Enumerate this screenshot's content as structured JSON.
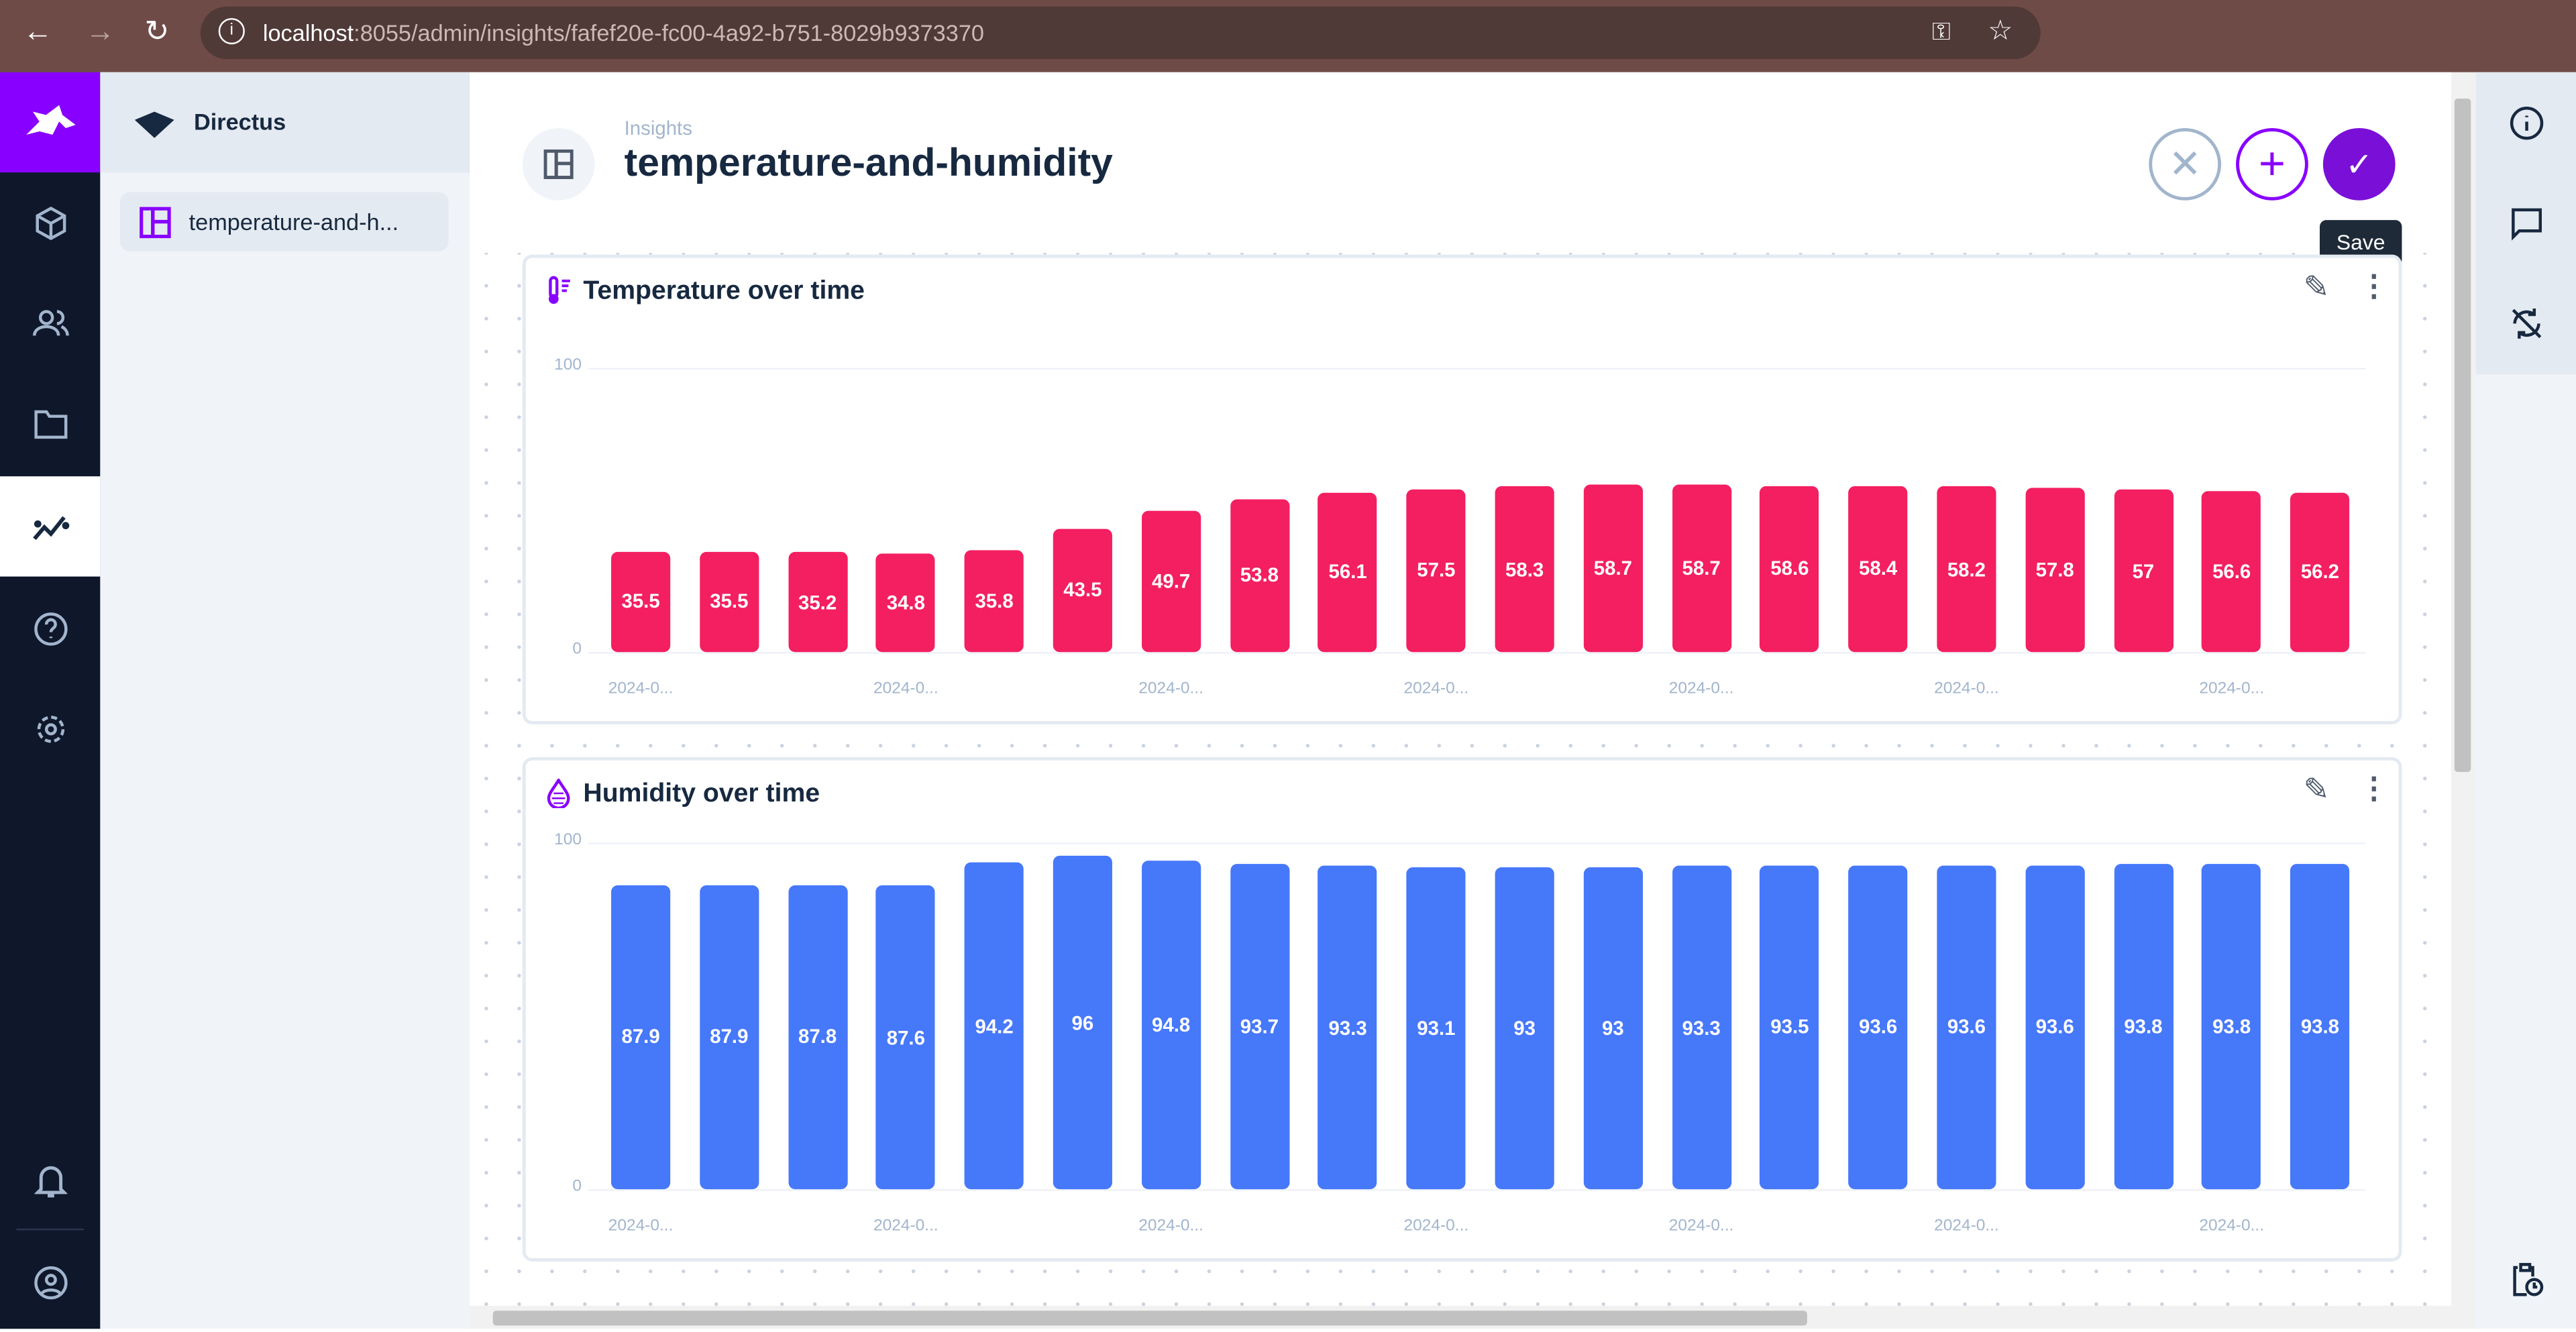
{
  "browser": {
    "url_host": "localhost",
    "url_path": ":8055/admin/insights/fafef20e-fc00-4a92-b751-8029b9373370"
  },
  "sidebar": {
    "project": "Directus",
    "items": [
      {
        "label": "temperature-and-h..."
      }
    ]
  },
  "header": {
    "breadcrumb": "Insights",
    "title": "temperature-and-humidity",
    "save_tooltip": "Save"
  },
  "colors": {
    "accent": "#8800ff",
    "temperature": "#f31f61",
    "humidity": "#4678fa"
  },
  "chart_data": [
    {
      "type": "bar",
      "title": "Temperature over time",
      "icon": "thermostat-icon",
      "ylim": [
        0,
        100
      ],
      "yticks": [
        "0",
        "100"
      ],
      "xticklabels": [
        "2024-0...",
        "2024-0...",
        "2024-0...",
        "2024-0...",
        "2024-0...",
        "2024-0...",
        "2024-0..."
      ],
      "values": [
        35.5,
        35.5,
        35.2,
        34.8,
        35.8,
        43.5,
        49.7,
        53.8,
        56.1,
        57.5,
        58.3,
        58.7,
        58.7,
        58.6,
        58.4,
        58.2,
        57.8,
        57,
        56.6,
        56.2
      ],
      "color": "#f31f61"
    },
    {
      "type": "bar",
      "title": "Humidity over time",
      "icon": "water-drop-icon",
      "ylim": [
        0,
        100
      ],
      "yticks": [
        "0",
        "100"
      ],
      "xticklabels": [
        "2024-0...",
        "2024-0...",
        "2024-0...",
        "2024-0...",
        "2024-0...",
        "2024-0...",
        "2024-0..."
      ],
      "values": [
        87.9,
        87.9,
        87.8,
        87.6,
        94.2,
        96,
        94.8,
        93.7,
        93.3,
        93.1,
        93,
        93,
        93.3,
        93.5,
        93.6,
        93.6,
        93.6,
        93.8,
        93.8,
        93.8
      ],
      "color": "#4678fa"
    }
  ]
}
